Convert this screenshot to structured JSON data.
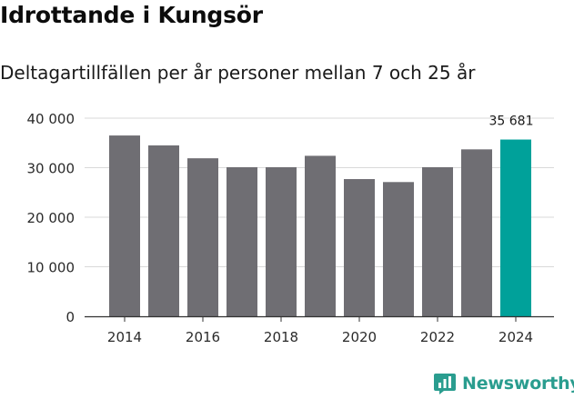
{
  "header": {
    "title": "Idrottande i Kungsör",
    "subtitle": "Deltagartillfällen per år personer mellan 7 och 25 år"
  },
  "brand": {
    "name": "Newsworthy"
  },
  "colors": {
    "bar": "#6f6e73",
    "highlight": "#00a19a",
    "grid": "#d9d9d9",
    "brand": "#2a9d8f"
  },
  "chart_data": {
    "type": "bar",
    "categories": [
      "2014",
      "2015",
      "2016",
      "2017",
      "2018",
      "2019",
      "2020",
      "2021",
      "2022",
      "2023",
      "2024"
    ],
    "values": [
      36500,
      34500,
      31900,
      30100,
      30100,
      32400,
      27700,
      27100,
      30100,
      33700,
      35681
    ],
    "highlight_index": 10,
    "data_labels": [
      {
        "index": 10,
        "text": "35 681"
      }
    ],
    "ylim": [
      0,
      40000
    ],
    "yticks": [
      0,
      10000,
      20000,
      30000,
      40000
    ],
    "ytick_labels": [
      "0",
      "10 000",
      "20 000",
      "30 000",
      "40 000"
    ],
    "xtick_labels": [
      "2014",
      "2016",
      "2018",
      "2020",
      "2022",
      "2024"
    ],
    "grid": true
  }
}
